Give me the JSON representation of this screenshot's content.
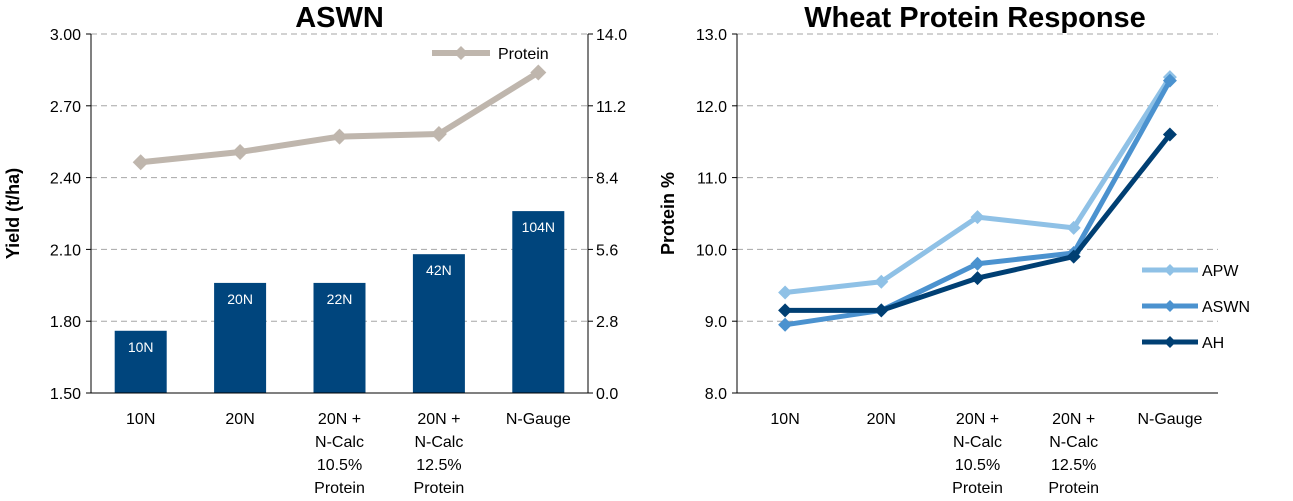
{
  "chart_data": [
    {
      "type": "bar",
      "title": "ASWN",
      "categories": [
        [
          "10N"
        ],
        [
          "20N"
        ],
        [
          "20N +",
          "N-Calc",
          "10.5%",
          "Protein"
        ],
        [
          "20N +",
          "N-Calc",
          "12.5%",
          "Protein"
        ],
        [
          "N-Gauge"
        ]
      ],
      "ylabel": "Yield (t/ha)",
      "ylim": [
        1.5,
        3.0
      ],
      "yticks": [
        "1.50",
        "1.80",
        "2.10",
        "2.40",
        "2.70",
        "3.00"
      ],
      "y2lim": [
        0.0,
        14.0
      ],
      "y2ticks": [
        "0.0",
        "2.8",
        "5.6",
        "8.4",
        "11.2",
        "14.0"
      ],
      "grid": true,
      "bar_series": {
        "values": [
          1.76,
          1.96,
          1.96,
          2.08,
          2.26
        ],
        "labels": [
          "10N",
          "20N",
          "22N",
          "42N",
          "104N"
        ],
        "color": "#00457d"
      },
      "line_series": [
        {
          "name": "Protein",
          "axis": "right",
          "values": [
            9.0,
            9.4,
            10.0,
            10.1,
            12.5
          ],
          "color": "#bfb6ad"
        }
      ],
      "legend": "top-right"
    },
    {
      "type": "line",
      "title": "Wheat Protein Response",
      "categories": [
        [
          "10N"
        ],
        [
          "20N"
        ],
        [
          "20N +",
          "N-Calc",
          "10.5%",
          "Protein"
        ],
        [
          "20N +",
          "N-Calc",
          "12.5%",
          "Protein"
        ],
        [
          "N-Gauge"
        ]
      ],
      "ylabel": "Protein %",
      "ylim": [
        8.0,
        13.0
      ],
      "yticks": [
        "8.0",
        "9.0",
        "10.0",
        "11.0",
        "12.0",
        "13.0"
      ],
      "grid": true,
      "series": [
        {
          "name": "APW",
          "values": [
            9.4,
            9.55,
            10.45,
            10.3,
            12.4
          ],
          "color": "#8fc1e6"
        },
        {
          "name": "ASWN",
          "values": [
            8.95,
            9.15,
            9.8,
            9.95,
            12.35
          ],
          "color": "#4b92cf"
        },
        {
          "name": "AH",
          "values": [
            9.15,
            9.15,
            9.6,
            9.9,
            11.6
          ],
          "color": "#003f73"
        }
      ],
      "legend": "right"
    }
  ]
}
